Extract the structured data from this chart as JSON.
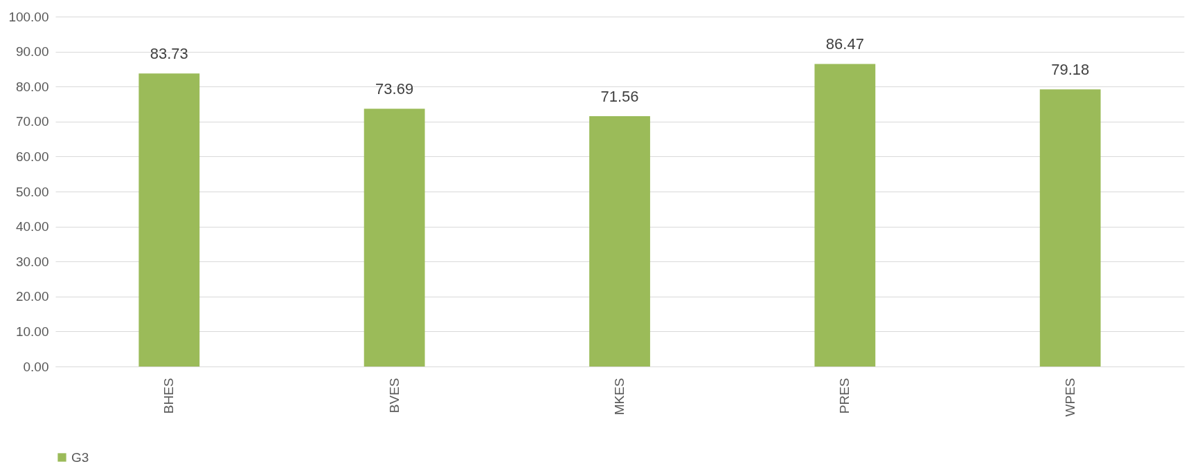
{
  "chart_data": {
    "type": "bar",
    "categories": [
      "BHES",
      "BVES",
      "MKES",
      "PRES",
      "WPES"
    ],
    "series": [
      {
        "name": "G3",
        "color": "#9bbb59",
        "values": [
          83.73,
          73.69,
          71.56,
          86.47,
          79.18
        ]
      }
    ],
    "ylim": [
      0,
      100
    ],
    "yticks": [
      {
        "value": 0,
        "label": "0.00"
      },
      {
        "value": 10,
        "label": "10.00"
      },
      {
        "value": 20,
        "label": "20.00"
      },
      {
        "value": 30,
        "label": "30.00"
      },
      {
        "value": 40,
        "label": "40.00"
      },
      {
        "value": 50,
        "label": "50.00"
      },
      {
        "value": 60,
        "label": "60.00"
      },
      {
        "value": 70,
        "label": "70.00"
      },
      {
        "value": 80,
        "label": "80.00"
      },
      {
        "value": 90,
        "label": "90.00"
      },
      {
        "value": 100,
        "label": "100.00"
      }
    ],
    "grid": "y",
    "legend": "bottom",
    "data_labels": true
  }
}
